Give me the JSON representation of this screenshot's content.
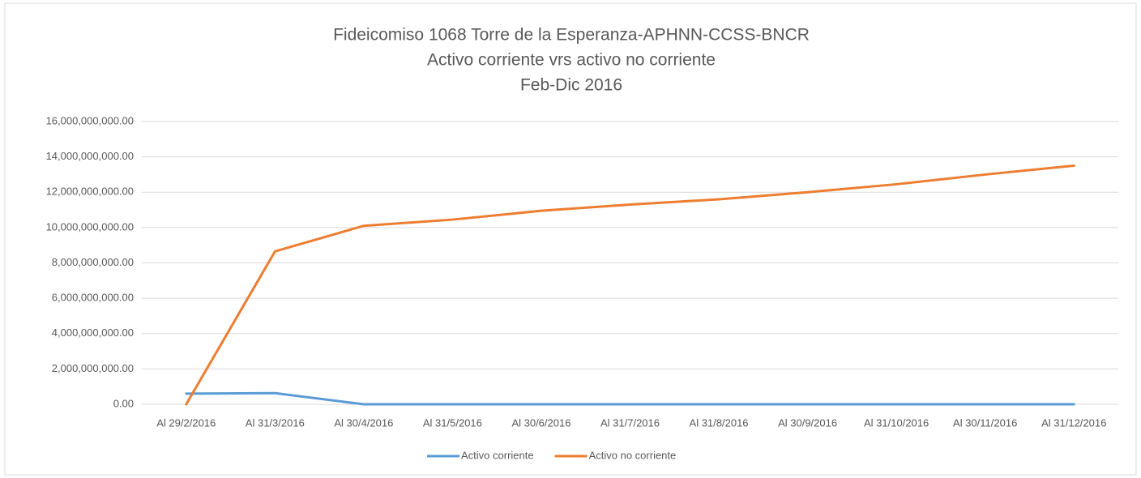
{
  "chart_data": {
    "type": "line",
    "title": [
      "Fideicomiso 1068 Torre de la Esperanza-APHNN-CCSS-BNCR",
      "Activo corriente vrs activo no corriente",
      "Feb-Dic 2016"
    ],
    "categories": [
      "Al 29/2/2016",
      "Al 31/3/2016",
      "Al 30/4/2016",
      "Al 31/5/2016",
      "Al 30/6/2016",
      "Al 31/7/2016",
      "Al 31/8/2016",
      "Al 30/9/2016",
      "Al 31/10/2016",
      "Al 30/11/2016",
      "Al 31/12/2016"
    ],
    "series": [
      {
        "name": "Activo corriente",
        "color": "#5b9bd5",
        "values": [
          600000000,
          630000000,
          0,
          0,
          0,
          0,
          0,
          0,
          0,
          0,
          0
        ]
      },
      {
        "name": "Activo no corriente",
        "color": "#ed7d31",
        "values": [
          0,
          8650000000,
          10100000000,
          10450000000,
          10950000000,
          11300000000,
          11600000000,
          12000000000,
          12450000000,
          13000000000,
          13500000000
        ]
      }
    ],
    "ylim": [
      0,
      16000000000
    ],
    "yticks": [
      {
        "value": 0,
        "label": "0.00"
      },
      {
        "value": 2000000000,
        "label": "2,000,000,000.00"
      },
      {
        "value": 4000000000,
        "label": "4,000,000,000.00"
      },
      {
        "value": 6000000000,
        "label": "6,000,000,000.00"
      },
      {
        "value": 8000000000,
        "label": "8,000,000,000.00"
      },
      {
        "value": 10000000000,
        "label": "10,000,000,000.00"
      },
      {
        "value": 12000000000,
        "label": "12,000,000,000.00"
      },
      {
        "value": 14000000000,
        "label": "14,000,000,000.00"
      },
      {
        "value": 16000000000,
        "label": "16,000,000,000.00"
      }
    ],
    "grid": true,
    "legend": "bottom"
  }
}
